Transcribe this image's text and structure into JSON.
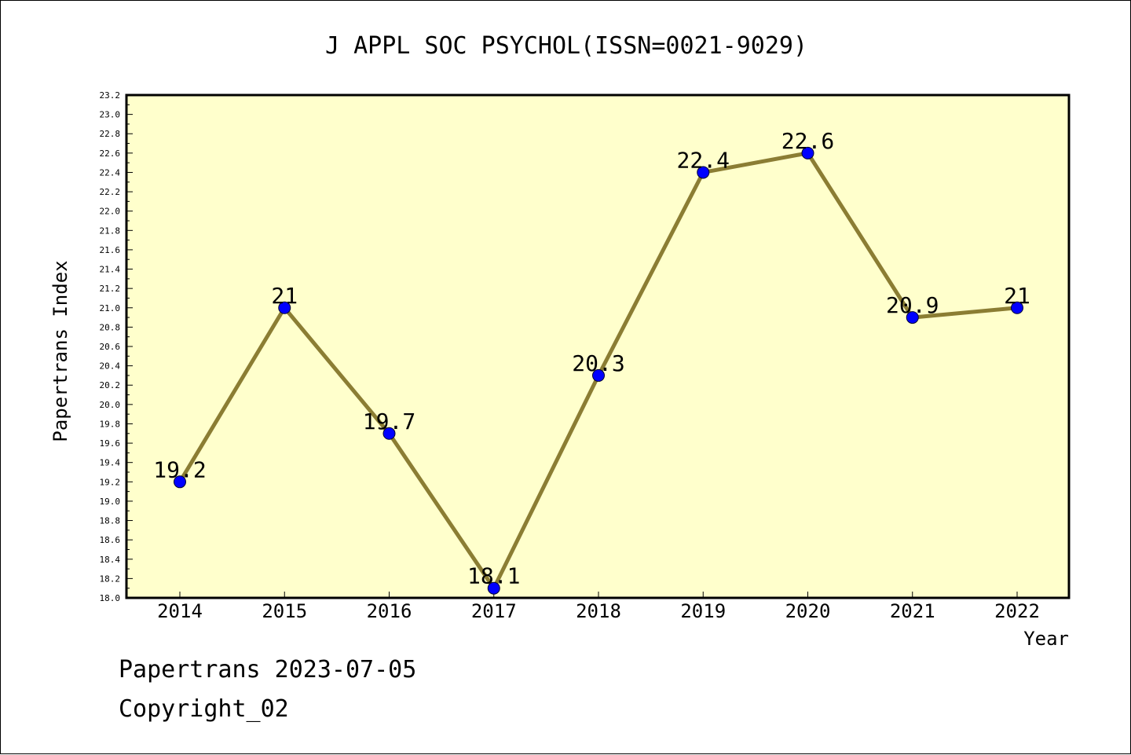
{
  "chart_data": {
    "type": "line",
    "title": "J APPL SOC PSYCHOL(ISSN=0021-9029)",
    "xlabel": "Year",
    "ylabel": "Papertrans Index",
    "categories": [
      "2014",
      "2015",
      "2016",
      "2017",
      "2018",
      "2019",
      "2020",
      "2021",
      "2022"
    ],
    "series": [
      {
        "values": [
          19.2,
          21,
          19.7,
          18.1,
          20.3,
          22.4,
          22.6,
          20.9,
          21
        ],
        "point_labels": [
          "19.2",
          "21",
          "19.7",
          "18.1",
          "20.3",
          "22.4",
          "22.6",
          "20.9",
          "21"
        ]
      }
    ],
    "ylim": [
      18.0,
      23.2
    ],
    "yticks": [
      "18.0",
      "18.2",
      "18.4",
      "18.6",
      "18.8",
      "19.0",
      "19.2",
      "19.4",
      "19.6",
      "19.8",
      "20.0",
      "20.2",
      "20.4",
      "20.6",
      "20.8",
      "21.0",
      "21.2",
      "21.4",
      "21.6",
      "21.8",
      "22.0",
      "22.2",
      "22.4",
      "22.6",
      "22.8",
      "23.0",
      "23.2"
    ],
    "grid": false,
    "colors": {
      "plot_background": "#ffffcc",
      "line": "#8b7d33",
      "marker": "#0000ff",
      "axis": "#000000"
    }
  },
  "footer": {
    "date_line": "Papertrans 2023-07-05",
    "copyright": "Copyright_02"
  }
}
